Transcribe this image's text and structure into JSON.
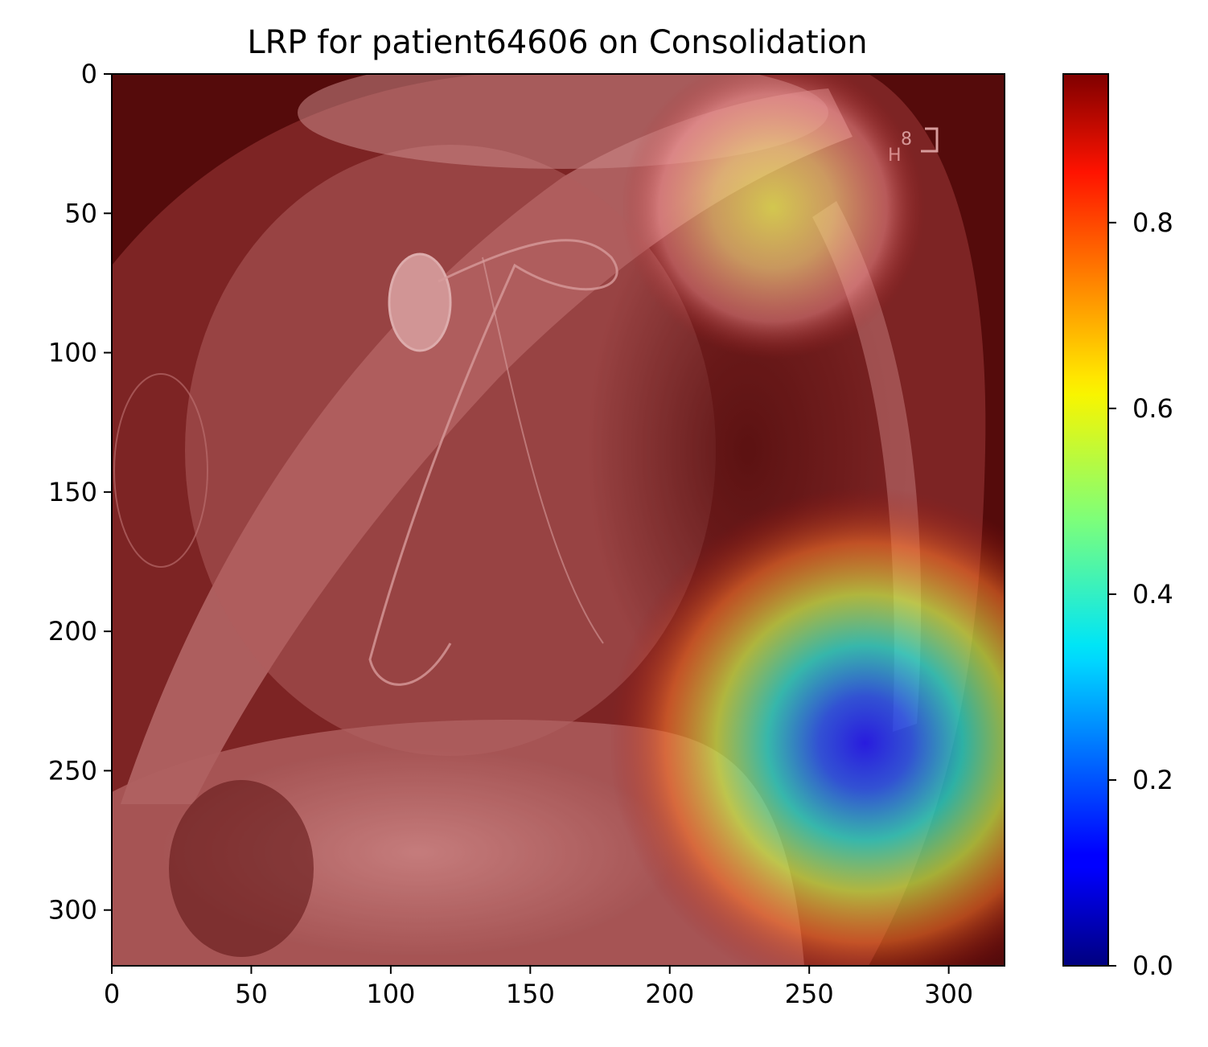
{
  "title": "LRP for patient64606 on Consolidation",
  "image_panel": {
    "description_tag": "lateral chest x-ray overlaid with LRP relevance heatmap",
    "overlay_color": "#8a1a1a",
    "hotspots": [
      {
        "x": 270,
        "y": 240,
        "radius": 27,
        "peak": 0.05,
        "label": "lower-right hotspot"
      },
      {
        "x": 237,
        "y": 48,
        "radius": 16,
        "peak": 0.6,
        "label": "upper hotspot"
      }
    ]
  },
  "axes": {
    "xlim": [
      0,
      320
    ],
    "ylim": [
      320,
      0
    ],
    "xticks": [
      0,
      50,
      100,
      150,
      200,
      250,
      300
    ],
    "yticks": [
      0,
      50,
      100,
      150,
      200,
      250,
      300
    ]
  },
  "colorbar": {
    "colormap": "jet",
    "range": [
      0.0,
      0.96
    ],
    "ticks": [
      {
        "value": 0.0,
        "label": "0.0"
      },
      {
        "value": 0.2,
        "label": "0.2"
      },
      {
        "value": 0.4,
        "label": "0.4"
      },
      {
        "value": 0.6,
        "label": "0.6"
      },
      {
        "value": 0.8,
        "label": "0.8"
      }
    ]
  }
}
